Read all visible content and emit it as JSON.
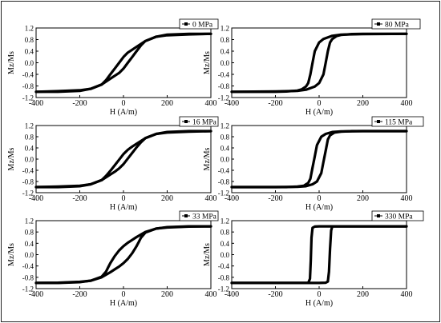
{
  "chart_data": [
    {
      "type": "line",
      "legend": "0 MPa",
      "xlabel": "H (A/m)",
      "ylabel": "Mz/Ms",
      "xlim": [
        -400,
        400
      ],
      "ylim": [
        -1.2,
        1.2
      ],
      "xticks": [
        "-400",
        "-200",
        "0",
        "200",
        "400"
      ],
      "yticks": [
        "-1.2",
        "-0.8",
        "-0.4",
        "0.0",
        "0.4",
        "0.8",
        "1.2"
      ],
      "series": [
        {
          "x": [
            -400,
            -300,
            -200,
            -150,
            -100,
            -60,
            -40,
            -20,
            0,
            20,
            40,
            60,
            80,
            100,
            150,
            200,
            300,
            400
          ],
          "y": [
            -1.0,
            -0.98,
            -0.95,
            -0.9,
            -0.75,
            -0.55,
            -0.45,
            -0.35,
            -0.2,
            0.0,
            0.2,
            0.4,
            0.6,
            0.75,
            0.9,
            0.97,
            1.0,
            1.0
          ]
        },
        {
          "x": [
            400,
            300,
            200,
            150,
            100,
            60,
            40,
            20,
            0,
            -20,
            -40,
            -60,
            -80,
            -100,
            -150,
            -200,
            -300,
            -400
          ],
          "y": [
            1.0,
            0.98,
            0.95,
            0.9,
            0.75,
            0.55,
            0.45,
            0.35,
            0.2,
            0.0,
            -0.2,
            -0.4,
            -0.6,
            -0.75,
            -0.9,
            -0.97,
            -1.0,
            -1.0
          ]
        }
      ]
    },
    {
      "type": "line",
      "legend": "80 MPa",
      "xlabel": "H (A/m)",
      "ylabel": "Mz/Ms",
      "xlim": [
        -400,
        400
      ],
      "ylim": [
        -1.2,
        1.2
      ],
      "xticks": [
        "-400",
        "-200",
        "0",
        "200",
        "400"
      ],
      "yticks": [
        "-1.2",
        "-0.8",
        "-0.4",
        "0.0",
        "0.4",
        "0.8",
        "1.2"
      ],
      "series": [
        {
          "x": [
            -400,
            -200,
            -100,
            -60,
            -20,
            0,
            20,
            30,
            40,
            50,
            60,
            80,
            100,
            150,
            200,
            300,
            400
          ],
          "y": [
            -1.0,
            -0.99,
            -0.97,
            -0.93,
            -0.82,
            -0.7,
            -0.4,
            0.0,
            0.4,
            0.7,
            0.82,
            0.92,
            0.96,
            0.99,
            1.0,
            1.0,
            1.0
          ]
        },
        {
          "x": [
            400,
            200,
            100,
            60,
            20,
            0,
            -20,
            -30,
            -40,
            -50,
            -60,
            -80,
            -100,
            -150,
            -200,
            -300,
            -400
          ],
          "y": [
            1.0,
            0.99,
            0.97,
            0.93,
            0.82,
            0.7,
            0.4,
            0.0,
            -0.4,
            -0.7,
            -0.82,
            -0.92,
            -0.96,
            -0.99,
            -1.0,
            -1.0,
            -1.0
          ]
        }
      ]
    },
    {
      "type": "line",
      "legend": "16 MPa",
      "xlabel": "H (A/m)",
      "ylabel": "Mz/Ms",
      "xlim": [
        -400,
        400
      ],
      "ylim": [
        -1.2,
        1.2
      ],
      "xticks": [
        "-400",
        "-200",
        "0",
        "200",
        "400"
      ],
      "yticks": [
        "-1.2",
        "-0.8",
        "-0.4",
        "0.0",
        "0.4",
        "0.8",
        "1.2"
      ],
      "series": [
        {
          "x": [
            -400,
            -300,
            -200,
            -150,
            -100,
            -60,
            -40,
            -20,
            0,
            20,
            40,
            60,
            80,
            100,
            150,
            200,
            300,
            400
          ],
          "y": [
            -1.0,
            -0.98,
            -0.95,
            -0.9,
            -0.75,
            -0.55,
            -0.45,
            -0.33,
            -0.18,
            0.02,
            0.22,
            0.42,
            0.6,
            0.75,
            0.9,
            0.97,
            1.0,
            1.0
          ]
        },
        {
          "x": [
            400,
            300,
            200,
            150,
            100,
            60,
            40,
            20,
            0,
            -20,
            -40,
            -60,
            -80,
            -100,
            -150,
            -200,
            -300,
            -400
          ],
          "y": [
            1.0,
            0.98,
            0.95,
            0.9,
            0.75,
            0.55,
            0.45,
            0.33,
            0.18,
            -0.02,
            -0.22,
            -0.42,
            -0.6,
            -0.75,
            -0.9,
            -0.97,
            -1.0,
            -1.0
          ]
        }
      ]
    },
    {
      "type": "line",
      "legend": "115 MPa",
      "xlabel": "H (A/m)",
      "ylabel": "Mz/Ms",
      "xlim": [
        -400,
        400
      ],
      "ylim": [
        -1.2,
        1.2
      ],
      "xticks": [
        "-400",
        "-200",
        "0",
        "200",
        "400"
      ],
      "yticks": [
        "-1.2",
        "-0.8",
        "-0.4",
        "0.0",
        "0.4",
        "0.8",
        "1.2"
      ],
      "series": [
        {
          "x": [
            -400,
            -200,
            -100,
            -60,
            -30,
            -10,
            10,
            20,
            30,
            40,
            50,
            70,
            100,
            150,
            200,
            300,
            400
          ],
          "y": [
            -1.0,
            -1.0,
            -0.99,
            -0.97,
            -0.9,
            -0.8,
            -0.5,
            -0.1,
            0.3,
            0.7,
            0.85,
            0.95,
            0.98,
            1.0,
            1.0,
            1.0,
            1.0
          ]
        },
        {
          "x": [
            400,
            200,
            100,
            60,
            30,
            10,
            -10,
            -20,
            -30,
            -40,
            -50,
            -70,
            -100,
            -150,
            -200,
            -300,
            -400
          ],
          "y": [
            1.0,
            1.0,
            0.99,
            0.97,
            0.9,
            0.8,
            0.5,
            0.1,
            -0.3,
            -0.7,
            -0.85,
            -0.95,
            -0.98,
            -1.0,
            -1.0,
            -1.0,
            -1.0
          ]
        }
      ]
    },
    {
      "type": "line",
      "legend": "33 MPa",
      "xlabel": "H (A/m)",
      "ylabel": "Mz/Ms",
      "xlim": [
        -400,
        400
      ],
      "ylim": [
        -1.2,
        1.2
      ],
      "xticks": [
        "-400",
        "-200",
        "0",
        "200",
        "400"
      ],
      "yticks": [
        "-1.2",
        "-0.8",
        "-0.4",
        "0.0",
        "0.4",
        "0.8",
        "1.2"
      ],
      "series": [
        {
          "x": [
            -400,
            -300,
            -200,
            -150,
            -100,
            -60,
            -40,
            -20,
            0,
            20,
            40,
            60,
            70,
            80,
            100,
            150,
            200,
            300,
            400
          ],
          "y": [
            -1.0,
            -0.99,
            -0.96,
            -0.92,
            -0.8,
            -0.62,
            -0.52,
            -0.42,
            -0.3,
            -0.15,
            0.05,
            0.3,
            0.45,
            0.6,
            0.78,
            0.92,
            0.97,
            1.0,
            1.0
          ]
        },
        {
          "x": [
            400,
            300,
            200,
            150,
            100,
            60,
            40,
            20,
            0,
            -20,
            -40,
            -60,
            -70,
            -80,
            -100,
            -150,
            -200,
            -300,
            -400
          ],
          "y": [
            1.0,
            0.99,
            0.96,
            0.92,
            0.8,
            0.62,
            0.52,
            0.42,
            0.3,
            0.15,
            -0.05,
            -0.3,
            -0.45,
            -0.6,
            -0.78,
            -0.92,
            -0.97,
            -1.0,
            -1.0
          ]
        }
      ]
    },
    {
      "type": "line",
      "legend": "330 MPa",
      "xlabel": "H (A/m)",
      "ylabel": "Mz/Ms",
      "xlim": [
        -400,
        400
      ],
      "ylim": [
        -1.2,
        1.2
      ],
      "xticks": [
        "-400",
        "-200",
        "0",
        "200",
        "400"
      ],
      "yticks": [
        "-1.2",
        "-0.8",
        "-0.4",
        "0.0",
        "0.4",
        "0.8",
        "1.2"
      ],
      "series": [
        {
          "x": [
            -400,
            -200,
            0,
            30,
            40,
            45,
            50,
            55,
            60,
            100,
            200,
            400
          ],
          "y": [
            -1.0,
            -1.0,
            -1.0,
            -0.99,
            -0.95,
            -0.6,
            0.2,
            0.85,
            1.0,
            1.0,
            1.0,
            1.0
          ]
        },
        {
          "x": [
            400,
            200,
            0,
            -20,
            -30,
            -35,
            -38,
            -42,
            -50,
            -100,
            -200,
            -400
          ],
          "y": [
            1.0,
            1.0,
            1.0,
            0.99,
            0.95,
            0.6,
            -0.2,
            -0.85,
            -1.0,
            -1.0,
            -1.0,
            -1.0
          ]
        }
      ]
    }
  ]
}
